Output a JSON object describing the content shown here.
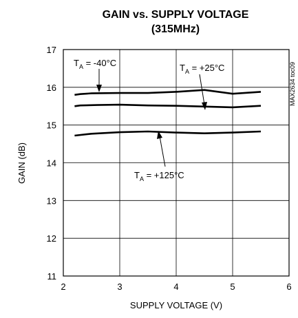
{
  "chart_data": {
    "type": "line",
    "title": "GAIN vs. SUPPLY VOLTAGE",
    "subtitle": "(315MHz)",
    "xlabel": "SUPPLY VOLTAGE (V)",
    "ylabel": "GAIN (dB)",
    "xlim": [
      2,
      6
    ],
    "ylim": [
      11,
      17
    ],
    "xticks": [
      2,
      3,
      4,
      5,
      6
    ],
    "yticks": [
      11,
      12,
      13,
      14,
      15,
      16,
      17
    ],
    "grid": true,
    "watermark": "MAX2634 toc09",
    "series": [
      {
        "name": "T_A = -40°C",
        "x": [
          2.2,
          2.3,
          2.5,
          3.0,
          3.5,
          4.0,
          4.5,
          4.75,
          5.0,
          5.5
        ],
        "values": [
          15.8,
          15.82,
          15.84,
          15.85,
          15.85,
          15.88,
          15.93,
          15.88,
          15.83,
          15.88
        ]
      },
      {
        "name": "T_A = +25°C",
        "x": [
          2.2,
          2.3,
          2.6,
          3.0,
          3.5,
          4.0,
          4.5,
          5.0,
          5.5
        ],
        "values": [
          15.5,
          15.52,
          15.53,
          15.54,
          15.52,
          15.51,
          15.49,
          15.47,
          15.51
        ]
      },
      {
        "name": "T_A = +125°C",
        "x": [
          2.2,
          2.5,
          3.0,
          3.5,
          4.0,
          4.5,
          5.0,
          5.5
        ],
        "values": [
          14.72,
          14.77,
          14.81,
          14.83,
          14.8,
          14.78,
          14.8,
          14.83
        ]
      }
    ],
    "annotations": [
      {
        "label": "T",
        "sub": "A",
        "rest": " = -40°C"
      },
      {
        "label": "T",
        "sub": "A",
        "rest": " = +25°C"
      },
      {
        "label": "T",
        "sub": "A",
        "rest": " = +125°C"
      }
    ]
  }
}
